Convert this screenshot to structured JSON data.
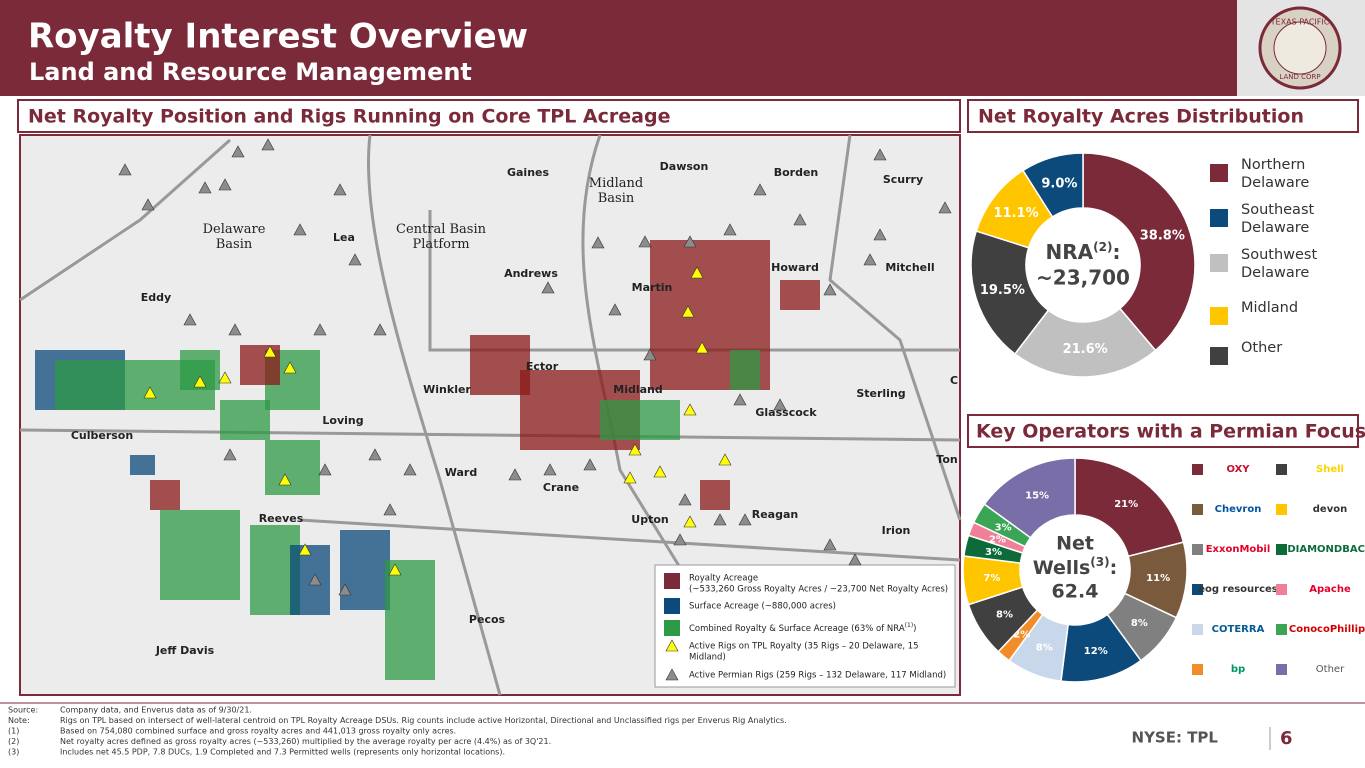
{
  "header": {
    "title": "Royalty Interest Overview",
    "subtitle": "Land and Resource Management",
    "logo": [
      "TEXAS PACIFIC",
      "LAND CORP"
    ]
  },
  "sections": [
    "Net Royalty Position and Rigs Running on Core TPL Acreage",
    "Net Royalty Acres Distribution",
    "Key Operators with a Permian Focus"
  ],
  "map": {
    "labels": [
      "Gaines",
      "Dawson",
      "Borden",
      "Scurry",
      "Midland Basin",
      "Delaware Basin",
      "Central Basin Platform",
      "Lea",
      "Andrews",
      "Martin",
      "Howard",
      "Mitchell",
      "Eddy",
      "Ector",
      "Winkler",
      "Midland",
      "Glasscock",
      "Sterling",
      "C",
      "Culberson",
      "Loving",
      "Ward",
      "Crane",
      "Ton",
      "Upton",
      "Reagan",
      "Reeves",
      "Irion",
      "Pecos",
      "Jeff Davis"
    ],
    "legend": [
      "Royalty Acreage",
      "(~533,260 Gross Royalty Acres / ~23,700 Net Royalty Acres)",
      "Surface Acreage (~880,000 acres)",
      "Combined Royalty & Surface Acreage (63% of NRA",
      "(1)",
      ")",
      "Active Rigs on TPL Royalty (35 Rigs – 20 Delaware, 15",
      "Midland)",
      "Active Permian Rigs (259 Rigs – 132 Delaware, 117 Midland)"
    ]
  },
  "chart_data": [
    {
      "type": "pie",
      "center_label": [
        "NRA",
        "(2)",
        ":",
        "~23,700"
      ],
      "categories": [
        "Northern Delaware",
        "Southwest Delaware",
        "Other",
        "Midland",
        "Southeast Delaware"
      ],
      "values": [
        38.8,
        21.6,
        19.5,
        11.1,
        9.0
      ],
      "value_labels": [
        "38.8%",
        "21.6%",
        "19.5%",
        "11.1%",
        "9.0%"
      ],
      "colors": [
        "#7b2a3a",
        "#c0c0c0",
        "#404040",
        "#ffc600",
        "#0b4a7a"
      ]
    },
    {
      "type": "pie",
      "center_label": [
        "Net",
        "Wells",
        "(3)",
        ":",
        "62.4"
      ],
      "categories": [
        "OXY",
        "Chevron",
        "ExxonMobil",
        "eog resources",
        "COTERRA",
        "bp",
        "Shell",
        "devon",
        "DIAMONDBACK",
        "Apache",
        "ConocoPhillips",
        "Other"
      ],
      "values": [
        21,
        11,
        8,
        12,
        8,
        2,
        8,
        7,
        3,
        2,
        3,
        15
      ],
      "value_labels": [
        "21%",
        "11%",
        "8%",
        "12%",
        "8%",
        "2%",
        "8%",
        "7%",
        "3%",
        "2%",
        "3%",
        "15%"
      ],
      "colors": [
        "#7b2a3a",
        "#7a5a3c",
        "#808080",
        "#0b4a7a",
        "#c9d7ea",
        "#f28c28",
        "#404040",
        "#ffc600",
        "#0d6b3a",
        "#f07f9a",
        "#3aa655",
        "#7a6ea8"
      ]
    }
  ],
  "footer": {
    "exchange": "NYSE: TPL",
    "page": "6",
    "notes": [
      [
        "Source:",
        "Company data, and Enverus  data as of 9/30/21."
      ],
      [
        "Note:",
        "Rigs on TPL based on intersect of well-lateral centroid on TPL Royalty Acreage DSUs.  Rig counts include active Horizontal, Directional and Unclassified rigs per Enverus Rig Analytics."
      ],
      [
        "(1)",
        "Based on 754,080 combined surface and gross royalty acres and 441,013 gross royalty only acres."
      ],
      [
        "(2)",
        "Net royalty acres defined as gross royalty acres (~533,260) multiplied by the average royalty per acre (4.4%) as of 3Q'21."
      ],
      [
        "(3)",
        "Includes net 45.5 PDP, 7.8 DUCs, 1.9 Completed and 7.3 Permitted wells (represents only horizontal locations)."
      ]
    ]
  }
}
